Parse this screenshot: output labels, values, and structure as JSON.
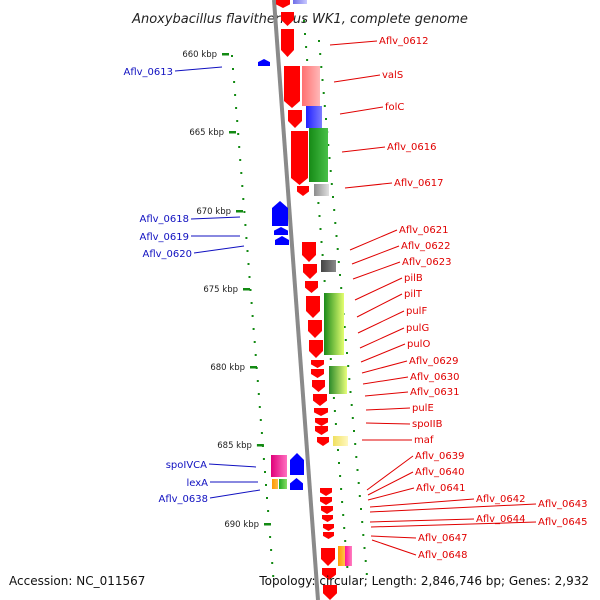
{
  "title": "Anoxybacillus flavithermus WK1, complete genome",
  "footer": {
    "accession": "Accession: NC_011567",
    "topology": "Topology: circular; Length: 2,846,746 bp; Genes: 2,932"
  },
  "colors": {
    "backbone": "#888888",
    "tick": "#138a13",
    "forward": "#ff0000",
    "reverse": "#0000ff",
    "label_forward": "#e00000",
    "label_reverse": "#1010c0"
  },
  "scale_labels": [
    "660 kbp",
    "665 kbp",
    "670 kbp",
    "675 kbp",
    "680 kbp",
    "685 kbp",
    "690 kbp"
  ],
  "forward_labels": [
    "Aflv_0612",
    "valS",
    "folC",
    "Aflv_0616",
    "Aflv_0617",
    "Aflv_0621",
    "Aflv_0622",
    "Aflv_0623",
    "pilB",
    "pilT",
    "pulF",
    "pulG",
    "pulO",
    "Aflv_0629",
    "Aflv_0630",
    "Aflv_0631",
    "pulE",
    "spoIIB",
    "maf",
    "Aflv_0639",
    "Aflv_0640",
    "Aflv_0641",
    "Aflv_0642",
    "Aflv_0643",
    "Aflv_0644",
    "Aflv_0645",
    "Aflv_0647",
    "Aflv_0648"
  ],
  "reverse_labels": [
    "Aflv_0613",
    "Aflv_0618",
    "Aflv_0619",
    "Aflv_0620",
    "spoIVCA",
    "lexA",
    "Aflv_0638"
  ]
}
